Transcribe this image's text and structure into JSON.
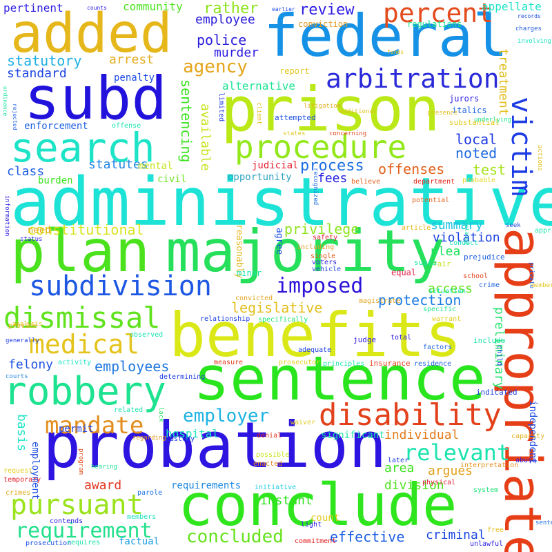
{
  "words": [
    {
      "text": "administrative",
      "color": "#1de3d6"
    },
    {
      "text": "probation",
      "color": "#2d14e0"
    },
    {
      "text": "benefits",
      "color": "#dbe817"
    },
    {
      "text": "sentence",
      "color": "#29e51e"
    },
    {
      "text": "conclude",
      "color": "#2fe51d"
    },
    {
      "text": "majority",
      "color": "#26e05c"
    },
    {
      "text": "plan",
      "color": "#4be21d"
    },
    {
      "text": "prison",
      "color": "#bbe817"
    },
    {
      "text": "federal",
      "color": "#1591e6"
    },
    {
      "text": "subd",
      "color": "#2213dc"
    },
    {
      "text": "added",
      "color": "#e5b71b"
    },
    {
      "text": "appropriate",
      "color": "#e63f18"
    },
    {
      "text": "search",
      "color": "#1de3c7"
    },
    {
      "text": "procedure",
      "color": "#93e81b"
    },
    {
      "text": "robbery",
      "color": "#1de28f"
    },
    {
      "text": "disability",
      "color": "#e3411b"
    },
    {
      "text": "subdivision",
      "color": "#1d57e3"
    },
    {
      "text": "dismissal",
      "color": "#60e21d"
    },
    {
      "text": "pursuant",
      "color": "#9be31d"
    },
    {
      "text": "arbitration",
      "color": "#2b2ad9"
    },
    {
      "text": "percent",
      "color": "#e34b1d"
    },
    {
      "text": "victim",
      "color": "#1d3ce3"
    },
    {
      "text": "medical",
      "color": "#e5c31b"
    },
    {
      "text": "imposed",
      "color": "#2c13d9"
    },
    {
      "text": "mandate",
      "color": "#e38d1d"
    },
    {
      "text": "requirement",
      "color": "#22e08c"
    },
    {
      "text": "concluded",
      "color": "#67e21d"
    },
    {
      "text": "relevant",
      "color": "#1de3ae"
    },
    {
      "text": "employer",
      "color": "#1db3e3"
    },
    {
      "text": "agency",
      "color": "#e5a51b"
    },
    {
      "text": "constitutional",
      "color": "#d9e31d"
    },
    {
      "text": "protection",
      "color": "#1d7be3"
    },
    {
      "text": "legislative",
      "color": "#e3bf1d"
    },
    {
      "text": "process",
      "color": "#1d6ee3"
    },
    {
      "text": "review",
      "color": "#2d1de3"
    },
    {
      "text": "police",
      "color": "#2b1ddc"
    },
    {
      "text": "employee",
      "color": "#2a1ddb"
    },
    {
      "text": "rather",
      "color": "#8ee31d"
    },
    {
      "text": "statutory",
      "color": "#1db0e3"
    },
    {
      "text": "standard",
      "color": "#1d46e3"
    },
    {
      "text": "arrest",
      "color": "#e3ab1d"
    },
    {
      "text": "murder",
      "color": "#2d1de3"
    },
    {
      "text": "community",
      "color": "#4ae31d"
    },
    {
      "text": "pertinent",
      "color": "#2d1de3"
    },
    {
      "text": "appellate",
      "color": "#1de3c8"
    },
    {
      "text": "alternative",
      "color": "#1de392"
    },
    {
      "text": "sentencing",
      "color": "#39e31d"
    },
    {
      "text": "available",
      "color": "#c9e31d"
    },
    {
      "text": "offenses",
      "color": "#e3611d"
    },
    {
      "text": "local",
      "color": "#1d37e3"
    },
    {
      "text": "noted",
      "color": "#1d69e3"
    },
    {
      "text": "test",
      "color": "#a5e31d"
    },
    {
      "text": "fees",
      "color": "#231de3"
    },
    {
      "text": "class",
      "color": "#1d5fe3"
    },
    {
      "text": "statutes",
      "color": "#1d85e3"
    },
    {
      "text": "privilege",
      "color": "#8de31d"
    },
    {
      "text": "summary",
      "color": "#1dc1e3"
    },
    {
      "text": "plea",
      "color": "#1de35a"
    },
    {
      "text": "violation",
      "color": "#1d41e3"
    },
    {
      "text": "access",
      "color": "#5ee31d"
    },
    {
      "text": "employees",
      "color": "#2079e0"
    },
    {
      "text": "felony",
      "color": "#1d52e3"
    },
    {
      "text": "award",
      "color": "#e3361d"
    },
    {
      "text": "argues",
      "color": "#e3a01d"
    },
    {
      "text": "area",
      "color": "#3ae31d"
    },
    {
      "text": "individual",
      "color": "#e37d1d"
    },
    {
      "text": "instant",
      "color": "#2ee31d"
    },
    {
      "text": "division",
      "color": "#4ee31d"
    },
    {
      "text": "effective",
      "color": "#1d5fe3"
    },
    {
      "text": "criminal",
      "color": "#1d4ae3"
    },
    {
      "text": "hospital",
      "color": "#1de3c2"
    },
    {
      "text": "basis",
      "color": "#1de3c5"
    },
    {
      "text": "preliminary",
      "color": "#2ae36e"
    },
    {
      "text": "treatment",
      "color": "#e3bd1d"
    },
    {
      "text": "penalty",
      "color": "#1d4be3"
    },
    {
      "text": "enforcement",
      "color": "#1d61e3"
    },
    {
      "text": "burden",
      "color": "#39e31d"
    },
    {
      "text": "mental",
      "color": "#c6e31d"
    },
    {
      "text": "civil",
      "color": "#6ee31d"
    },
    {
      "text": "opportunity",
      "color": "#2ea3c0"
    },
    {
      "text": "judicial",
      "color": "#e31d2d"
    },
    {
      "text": "need",
      "color": "#e3a31d"
    },
    {
      "text": "requirements",
      "color": "#1d89e3"
    },
    {
      "text": "significant",
      "color": "#1de3a5"
    },
    {
      "text": "permit",
      "color": "#1d40e3"
    },
    {
      "text": "employment",
      "color": "#1d4ee3"
    },
    {
      "text": "count",
      "color": "#e3c81d"
    },
    {
      "text": "factual",
      "color": "#1d9ee3"
    },
    {
      "text": "reasonably",
      "color": "#e3b71d"
    },
    {
      "text": "agree",
      "color": "#1d4be3"
    },
    {
      "text": "independent",
      "color": "#1d4be3"
    },
    {
      "text": "report",
      "color": "#e3c61d"
    },
    {
      "text": "conviction",
      "color": "#e3961d"
    },
    {
      "text": "regulations",
      "color": "#1de38e"
    },
    {
      "text": "italics",
      "color": "#1d66e3"
    },
    {
      "text": "jurors",
      "color": "#2d1de3"
    },
    {
      "text": "prejudice",
      "color": "#1d5de3"
    },
    {
      "text": "fair",
      "color": "#c2e31d"
    },
    {
      "text": "supra",
      "color": "#1de3a2"
    },
    {
      "text": "minor",
      "color": "#1de3a9"
    },
    {
      "text": "equal",
      "color": "#e31d41"
    },
    {
      "text": "substantial",
      "color": "#e3c91d"
    },
    {
      "text": "limited",
      "color": "#1d39e3"
    },
    {
      "text": "attempted",
      "color": "#1d4fe3"
    },
    {
      "text": "recognized",
      "color": "#1d6fe3"
    },
    {
      "text": "believe",
      "color": "#e3621d"
    },
    {
      "text": "department",
      "color": "#e32a1d"
    },
    {
      "text": "probable",
      "color": "#e3d41d"
    },
    {
      "text": "potential",
      "color": "#e3621d"
    },
    {
      "text": "article",
      "color": "#e3b81d"
    },
    {
      "text": "safety",
      "color": "#e31d35"
    },
    {
      "text": "conduct",
      "color": "#1de3bb"
    },
    {
      "text": "including",
      "color": "#e3991d"
    },
    {
      "text": "voters",
      "color": "#2d1de3"
    },
    {
      "text": "single",
      "color": "#e35c1d"
    },
    {
      "text": "vehicle",
      "color": "#1d41e3"
    },
    {
      "text": "school",
      "color": "#e3461d"
    },
    {
      "text": "crime",
      "color": "#1d64e3"
    },
    {
      "text": "situation",
      "color": "#1de3bb"
    },
    {
      "text": "specific",
      "color": "#1de390"
    },
    {
      "text": "warrant",
      "color": "#e3cc1d"
    },
    {
      "text": "convicted",
      "color": "#e3a31d"
    },
    {
      "text": "specifically",
      "color": "#1de373"
    },
    {
      "text": "magistrate",
      "color": "#e3a41d"
    },
    {
      "text": "relationship",
      "color": "#1d42e3"
    },
    {
      "text": "provide",
      "color": "#e3b31d"
    },
    {
      "text": "observed",
      "color": "#1de3b4"
    },
    {
      "text": "activity",
      "color": "#1de3c3"
    },
    {
      "text": "prosecutor",
      "color": "#e3d01d"
    },
    {
      "text": "measure",
      "color": "#e33d1d"
    },
    {
      "text": "determining",
      "color": "#1d3ce3"
    },
    {
      "text": "principles",
      "color": "#1de3ab"
    },
    {
      "text": "insurance",
      "color": "#e33e1d"
    },
    {
      "text": "residence",
      "color": "#1d62e3"
    },
    {
      "text": "adequate",
      "color": "#1d41e3"
    },
    {
      "text": "judge",
      "color": "#2d1de3"
    },
    {
      "text": "total",
      "color": "#2d1de3"
    },
    {
      "text": "factors",
      "color": "#1d65e3"
    },
    {
      "text": "include",
      "color": "#1de3ab"
    },
    {
      "text": "child",
      "color": "#1d47e3"
    },
    {
      "text": "indicated",
      "color": "#1d42e3"
    },
    {
      "text": "related",
      "color": "#1de3ab"
    },
    {
      "text": "lack",
      "color": "#1de35c"
    },
    {
      "text": "custody",
      "color": "#1d3ae3"
    },
    {
      "text": "denial",
      "color": "#e32e1d"
    },
    {
      "text": "waiver",
      "color": "#e3c91d"
    },
    {
      "text": "regarding",
      "color": "#e3961d"
    },
    {
      "text": "program",
      "color": "#e34e1d"
    },
    {
      "text": "hearing",
      "color": "#1de395"
    },
    {
      "text": "possible",
      "color": "#c9e31d"
    },
    {
      "text": "enacted",
      "color": "#e3821d"
    },
    {
      "text": "later",
      "color": "#1d3de3"
    },
    {
      "text": "interpretation",
      "color": "#e3931d"
    },
    {
      "text": "physical",
      "color": "#e31d35"
    },
    {
      "text": "system",
      "color": "#1de377"
    },
    {
      "text": "capacity",
      "color": "#e3b31d"
    },
    {
      "text": "abuse",
      "color": "#2d1de3"
    },
    {
      "text": "request",
      "color": "#e3cc1d"
    },
    {
      "text": "temporary",
      "color": "#e31d2a"
    },
    {
      "text": "crimes",
      "color": "#e3aa1d"
    },
    {
      "text": "parole",
      "color": "#1d73e3"
    },
    {
      "text": "initiative",
      "color": "#1dcce3"
    },
    {
      "text": "contends",
      "color": "#2d1de3"
    },
    {
      "text": "members",
      "color": "#1de3c0"
    },
    {
      "text": "light",
      "color": "#2d1de3"
    },
    {
      "text": "prosecution",
      "color": "#1d50e3"
    },
    {
      "text": "requires",
      "color": "#1de3a5"
    },
    {
      "text": "commitment",
      "color": "#e31d1d"
    },
    {
      "text": "unlawful",
      "color": "#2d1de3"
    },
    {
      "text": "free",
      "color": "#e3bf1d"
    },
    {
      "text": "sentenced",
      "color": "#1d71e3"
    },
    {
      "text": "information",
      "color": "#2d1de3"
    },
    {
      "text": "status",
      "color": "#2d1de3"
    },
    {
      "text": "analysis",
      "color": "#e3ba1d"
    },
    {
      "text": "generally",
      "color": "#1d3de3"
    },
    {
      "text": "courts",
      "color": "#1d85e3"
    },
    {
      "text": "ordinance",
      "color": "#1de3a2"
    },
    {
      "text": "rejected",
      "color": "#1d62e3"
    },
    {
      "text": "offense",
      "color": "#1de3b3"
    },
    {
      "text": "litigation",
      "color": "#e3ad1d"
    },
    {
      "text": "client",
      "color": "#e3c01d"
    },
    {
      "text": "additional",
      "color": "#e3c01d"
    },
    {
      "text": "states",
      "color": "#e3c91d"
    },
    {
      "text": "concerning",
      "color": "#e3471d"
    },
    {
      "text": "presence",
      "color": "#e3bb1d"
    },
    {
      "text": "underlying",
      "color": "#1de38a"
    },
    {
      "text": "actions",
      "color": "#e3bf1d"
    },
    {
      "text": "violated",
      "color": "#1de3aa"
    },
    {
      "text": "seek",
      "color": "#1d44e3"
    },
    {
      "text": "approval",
      "color": "#1de3ad"
    },
    {
      "text": "private",
      "color": "#1d5de3"
    },
    {
      "text": "member",
      "color": "#e3c61d"
    },
    {
      "text": "counts",
      "color": "#2d1de3"
    },
    {
      "text": "earlier",
      "color": "#1d4ee3"
    },
    {
      "text": "records",
      "color": "#1d4ee3"
    },
    {
      "text": "charges",
      "color": "#1d5ae3"
    },
    {
      "text": "involving",
      "color": "#1de3c2"
    },
    {
      "text": "funds",
      "color": "#e3c21d"
    }
  ]
}
